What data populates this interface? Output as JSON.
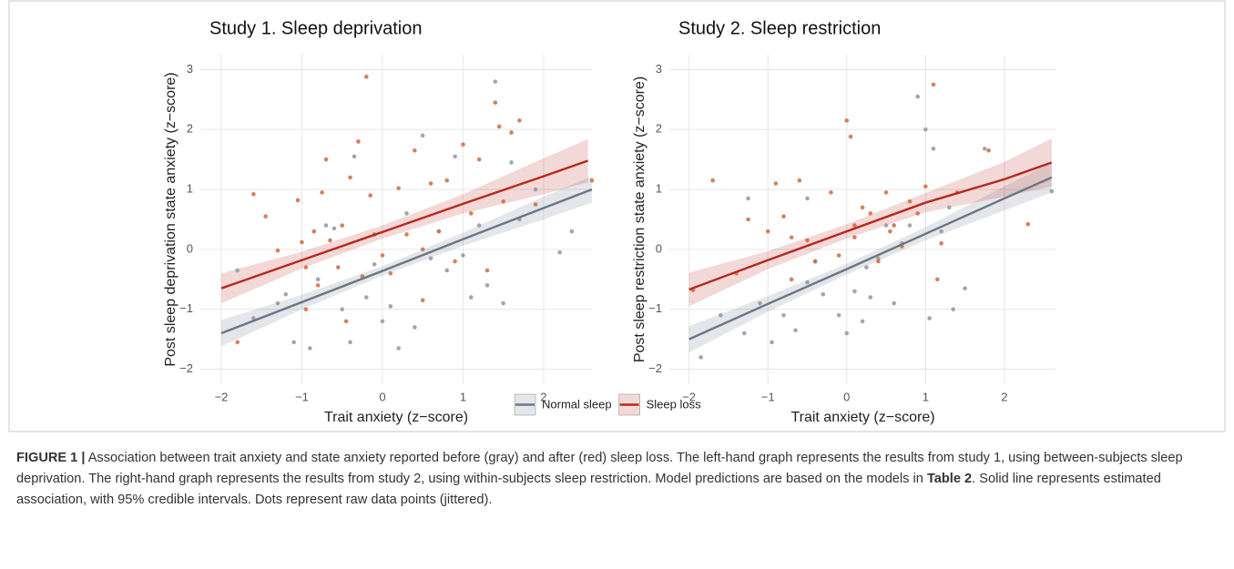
{
  "chart_data": [
    {
      "type": "scatter",
      "title": "Study 1. Sleep deprivation",
      "xlabel": "Trait anxiety (z−score)",
      "ylabel": "Post sleep deprivation state anxiety (z−score)",
      "xlim": [
        -2.26,
        2.6
      ],
      "ylim": [
        -2.25,
        3.25
      ],
      "xticks": [
        {
          "value": -2,
          "label": "−2"
        },
        {
          "value": -1,
          "label": "−1"
        },
        0,
        1,
        2
      ],
      "yticks": [
        {
          "value": -2,
          "label": "−2"
        },
        {
          "value": -1,
          "label": "−1"
        },
        0,
        1,
        2,
        3
      ],
      "grid": true,
      "series": [
        {
          "name": "Normal sleep",
          "color": "#8f96a3",
          "x": [
            -1.8,
            -1.6,
            -1.3,
            -1.1,
            -0.9,
            -0.8,
            -0.7,
            -0.5,
            -0.4,
            -0.35,
            -0.2,
            -0.1,
            0,
            0.1,
            0.2,
            0.3,
            0.4,
            0.5,
            0.6,
            0.7,
            0.9,
            1.0,
            1.1,
            1.2,
            1.3,
            1.4,
            1.5,
            1.7,
            1.9,
            2.2,
            2.35,
            -0.6,
            0.8,
            1.6,
            -1.2
          ],
          "values": [
            -0.35,
            -1.15,
            -0.9,
            -1.55,
            -1.65,
            -0.5,
            0.4,
            -1.0,
            -1.55,
            1.55,
            -0.8,
            -0.25,
            -1.2,
            -0.95,
            -1.65,
            0.6,
            -1.3,
            1.9,
            -0.15,
            0.3,
            1.55,
            -0.1,
            -0.8,
            0.4,
            -0.6,
            2.8,
            -0.9,
            0.5,
            1.0,
            -0.05,
            0.3,
            0.35,
            -0.35,
            1.45,
            -0.75
          ]
        },
        {
          "name": "Sleep loss",
          "color": "#d2693e",
          "x": [
            -1.6,
            -1.45,
            -1.3,
            -1.05,
            -1.0,
            -0.95,
            -0.85,
            -0.8,
            -0.75,
            -0.7,
            -0.65,
            -0.55,
            -0.5,
            -0.45,
            -0.4,
            -0.3,
            -0.2,
            -0.15,
            -0.1,
            0,
            0.1,
            0.2,
            0.3,
            0.4,
            0.5,
            0.6,
            0.7,
            0.8,
            0.9,
            1.0,
            1.1,
            1.2,
            1.3,
            1.4,
            1.45,
            1.6,
            1.7,
            1.9,
            2.6,
            -1.8,
            -0.95,
            -0.25,
            0.5,
            1.5
          ],
          "values": [
            0.92,
            0.55,
            -0.02,
            0.82,
            0.12,
            -0.3,
            0.3,
            -0.6,
            0.95,
            1.5,
            0.15,
            -0.3,
            0.4,
            -1.2,
            1.2,
            1.8,
            2.88,
            0.9,
            0.25,
            -0.1,
            -0.4,
            1.02,
            0.25,
            1.65,
            -0.85,
            1.1,
            0.3,
            1.15,
            -0.2,
            1.75,
            0.6,
            1.5,
            -0.35,
            2.45,
            2.05,
            1.95,
            2.15,
            0.75,
            1.15,
            -1.55,
            -1.0,
            -0.45,
            0.0,
            0.8
          ]
        }
      ],
      "fits": [
        {
          "color": "#6b7685",
          "x": [
            -2,
            -1,
            0,
            1,
            2,
            2.6
          ],
          "values": [
            -1.4,
            -0.88,
            -0.36,
            0.17,
            0.69,
            1.0
          ],
          "lower": [
            -1.62,
            -1.0,
            -0.44,
            0.06,
            0.5,
            0.78
          ],
          "upper": [
            -1.18,
            -0.76,
            -0.28,
            0.28,
            0.88,
            1.22
          ]
        },
        {
          "color": "#b8281e",
          "x": [
            -2,
            -1,
            0,
            1,
            2,
            2.55
          ],
          "values": [
            -0.65,
            -0.18,
            0.29,
            0.76,
            1.22,
            1.48
          ],
          "lower": [
            -0.9,
            -0.32,
            0.18,
            0.6,
            0.92,
            1.12
          ],
          "upper": [
            -0.4,
            -0.04,
            0.4,
            0.92,
            1.52,
            1.84
          ]
        }
      ]
    },
    {
      "type": "scatter",
      "title": "Study 2. Sleep restriction",
      "xlabel": "Trait anxiety (z−score)",
      "ylabel": "Post sleep restriction state anxiety (z−score)",
      "xlim": [
        -2.25,
        2.66
      ],
      "ylim": [
        -2.25,
        3.25
      ],
      "xticks": [
        {
          "value": -2,
          "label": "−2"
        },
        {
          "value": -1,
          "label": "−1"
        },
        0,
        1,
        2
      ],
      "yticks": [
        {
          "value": -2,
          "label": "−2"
        },
        {
          "value": -1,
          "label": "−1"
        },
        0,
        1,
        2,
        3
      ],
      "grid": true,
      "series": [
        {
          "color": "#8f96a3",
          "x": [
            -1.85,
            -1.6,
            -1.3,
            -1.25,
            -1.1,
            -0.95,
            -0.8,
            -0.65,
            -0.5,
            -0.4,
            -0.3,
            -0.1,
            0,
            0.1,
            0.2,
            0.3,
            0.4,
            0.5,
            0.6,
            0.7,
            0.8,
            0.9,
            1.0,
            1.05,
            1.1,
            1.3,
            1.35,
            1.5,
            1.75,
            2.6,
            -0.5,
            0.25,
            1.2
          ],
          "values": [
            -1.8,
            -1.1,
            -1.4,
            0.85,
            -0.9,
            -1.55,
            -1.1,
            -1.35,
            -0.55,
            -0.2,
            -0.75,
            -1.1,
            -1.4,
            -0.7,
            -1.2,
            -0.8,
            -0.15,
            0.4,
            -0.9,
            0.1,
            0.4,
            2.55,
            2.0,
            -1.15,
            1.68,
            0.7,
            -1.0,
            -0.65,
            1.68,
            0.97,
            0.85,
            -0.3,
            0.3
          ]
        },
        {
          "color": "#d2693e",
          "x": [
            -1.95,
            -1.7,
            -1.4,
            -1.25,
            -1.0,
            -0.9,
            -0.8,
            -0.7,
            -0.6,
            -0.5,
            -0.4,
            -0.2,
            -0.1,
            0,
            0.05,
            0.1,
            0.2,
            0.3,
            0.4,
            0.5,
            0.6,
            0.7,
            0.8,
            0.9,
            1.0,
            1.1,
            1.15,
            1.2,
            1.4,
            1.8,
            2.3,
            -0.7,
            0.1,
            0.55
          ],
          "values": [
            -0.68,
            1.15,
            -0.4,
            0.5,
            0.3,
            1.1,
            0.55,
            -0.5,
            1.15,
            0.15,
            -0.2,
            0.95,
            -0.1,
            2.15,
            1.88,
            0.4,
            0.7,
            0.6,
            -0.2,
            0.95,
            0.4,
            0.05,
            0.8,
            0.6,
            1.05,
            2.75,
            -0.5,
            0.1,
            0.95,
            1.65,
            0.42,
            0.2,
            0.2,
            0.3
          ]
        }
      ],
      "fits": [
        {
          "color": "#6b7685",
          "x": [
            -2,
            -1,
            0,
            1,
            2,
            2.6
          ],
          "values": [
            -1.5,
            -0.91,
            -0.33,
            0.26,
            0.85,
            1.2
          ],
          "lower": [
            -1.72,
            -1.04,
            -0.42,
            0.15,
            0.65,
            0.95
          ],
          "upper": [
            -1.28,
            -0.78,
            -0.24,
            0.37,
            1.05,
            1.45
          ]
        },
        {
          "color": "#b8281e",
          "x": [
            -2,
            -1,
            0,
            1,
            2,
            2.6
          ],
          "values": [
            -0.67,
            -0.18,
            0.3,
            0.78,
            1.17,
            1.45
          ],
          "lower": [
            -0.95,
            -0.33,
            0.18,
            0.62,
            0.88,
            1.05
          ],
          "upper": [
            -0.39,
            -0.03,
            0.42,
            0.94,
            1.46,
            1.85
          ]
        }
      ]
    }
  ],
  "caption": {
    "label": "FIGURE 1 |",
    "parts": [
      " Association between trait anxiety and state anxiety reported before (gray) and after (red) sleep loss. The left-hand graph represents the results from study 1, using between-subjects sleep deprivation. The right-hand graph represents the results from study 2, using within-subjects sleep restriction. Model predictions are based on the models in ",
      "Table 2",
      ". Solid line represents estimated association, with 95% credible intervals. Dots represent raw data points (jittered)."
    ]
  }
}
